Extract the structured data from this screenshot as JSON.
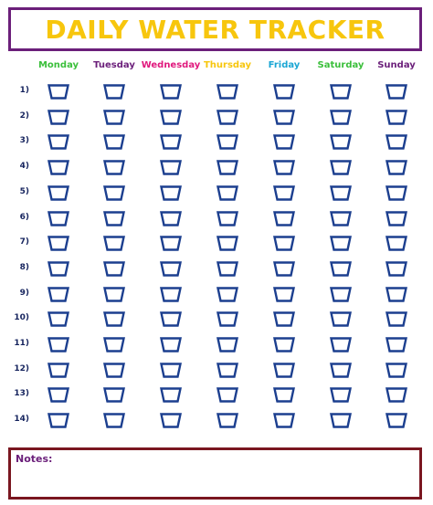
{
  "title": "DAILY WATER TRACKER",
  "days": [
    {
      "label": "Monday",
      "color": "#3bbf3b"
    },
    {
      "label": "Tuesday",
      "color": "#6b1f7a"
    },
    {
      "label": "Wednesday",
      "color": "#e0197d"
    },
    {
      "label": "Thursday",
      "color": "#f7c60d"
    },
    {
      "label": "Friday",
      "color": "#1aa6d4"
    },
    {
      "label": "Saturday",
      "color": "#3bbf3b"
    },
    {
      "label": "Sunday",
      "color": "#6b1f7a"
    }
  ],
  "rows": [
    "1)",
    "2)",
    "3)",
    "4)",
    "5)",
    "6)",
    "7)",
    "8)",
    "9)",
    "10)",
    "11)",
    "12)",
    "13)",
    "14)"
  ],
  "cup_icon": "cup-icon",
  "cup_color": "#1c3f8f",
  "notes_label": "Notes:"
}
